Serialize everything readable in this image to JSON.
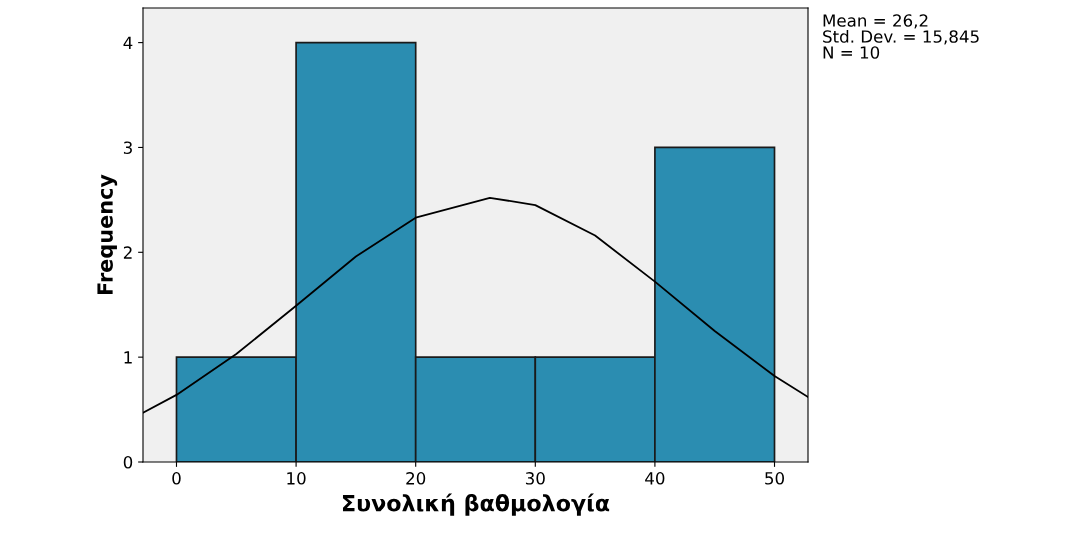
{
  "chart_data": {
    "type": "histogram",
    "xlabel": "Συνολική βαθμολογία",
    "ylabel": "Frequency",
    "bins": [
      0,
      10,
      20,
      30,
      40,
      50
    ],
    "values": [
      1,
      4,
      1,
      1,
      3
    ],
    "color": "#2b8db1",
    "series": [
      {
        "type": "line",
        "color": "#000000",
        "x": [
          -2.8,
          0,
          5,
          10,
          15,
          20,
          26.2,
          30,
          35,
          40,
          45,
          50,
          52.8
        ],
        "values": [
          0.47,
          0.64,
          1.03,
          1.49,
          1.96,
          2.33,
          2.52,
          2.45,
          2.16,
          1.72,
          1.25,
          0.82,
          0.62
        ]
      }
    ],
    "xlim": [
      -2.8,
      52.8
    ],
    "xticks": [
      0,
      10,
      20,
      30,
      40,
      50
    ],
    "ylim": [
      0,
      4.33
    ],
    "yticks": [
      0,
      1,
      2,
      3,
      4
    ],
    "grid": false,
    "legend": false,
    "annotations": [
      "Mean = 26,2",
      "Std. Dev. = 15,845",
      "N = 10"
    ]
  }
}
